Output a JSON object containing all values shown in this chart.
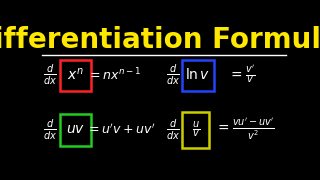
{
  "background_color": "#000000",
  "title": "Differentiation Formulas",
  "title_color": "#FFE800",
  "title_fontsize": 20,
  "separator_color": "#FFFFFF",
  "formula_color": "#FFFFFF",
  "bracket_colors": [
    "#FF2222",
    "#2244FF",
    "#22CC22",
    "#CCCC00"
  ]
}
